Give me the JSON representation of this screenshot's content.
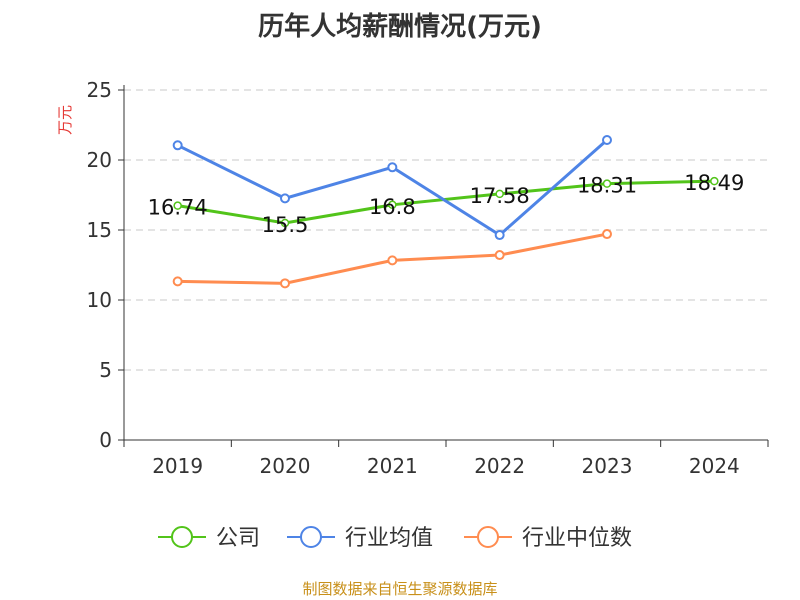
{
  "chart_data": {
    "type": "line",
    "title": "历年人均薪酬情况(万元)",
    "ylabel": "万元",
    "ylim": [
      0,
      25
    ],
    "yticks": [
      0,
      5,
      10,
      15,
      20,
      25
    ],
    "categories": [
      "2019",
      "2020",
      "2021",
      "2022",
      "2023",
      "2024"
    ],
    "grid": true,
    "legend_position": "bottom",
    "series": [
      {
        "name": "公司",
        "color": "#52c41a",
        "values": [
          16.74,
          15.5,
          16.8,
          17.58,
          18.31,
          18.49
        ],
        "labels": [
          "16.74",
          "15.5",
          "16.8",
          "17.58",
          "18.31",
          "18.49"
        ]
      },
      {
        "name": "行业均值",
        "color": "#4e84e6",
        "values": [
          21.05,
          17.26,
          19.48,
          14.64,
          21.43,
          null
        ]
      },
      {
        "name": "行业中位数",
        "color": "#ff8c50",
        "values": [
          11.33,
          11.19,
          12.83,
          13.21,
          14.71,
          null
        ]
      }
    ]
  },
  "source": "制图数据来自恒生聚源数据库"
}
